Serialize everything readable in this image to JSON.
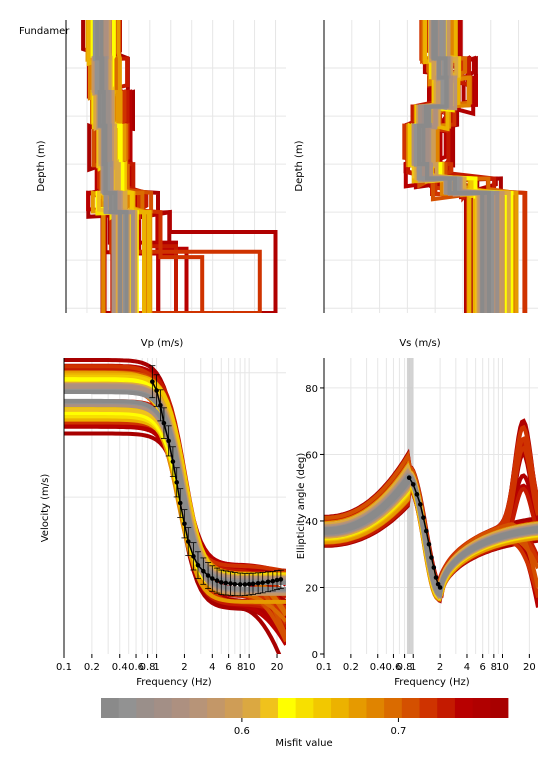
{
  "colors": {
    "scale": [
      "#8a8a8a",
      "#929292",
      "#9a8f8a",
      "#a38f86",
      "#ad9080",
      "#b79478",
      "#c39768",
      "#cf9d56",
      "#dba841",
      "#f0c21c",
      "#ffff00",
      "#f7e000",
      "#f2c800",
      "#ecb200",
      "#e69a00",
      "#e08400",
      "#da6b00",
      "#d45000",
      "#cf3300",
      "#c41a00",
      "#b80000",
      "#b00000",
      "#a80000"
    ],
    "data": "#000000",
    "grid": "#e6e6e6",
    "band": "#c8c8c8"
  },
  "chart_data": [
    {
      "type": "line",
      "name": "vp-profiles",
      "xlabel": "Vp (m/s)",
      "ylabel": "Depth (m)",
      "xlim": [
        0,
        2100
      ],
      "ylim": [
        0,
        61
      ],
      "y_inverted": true,
      "xticks": [
        "0",
        "400",
        "800",
        "1200",
        "1600",
        "2000"
      ],
      "yticks": [
        "0",
        "20",
        "40",
        "60"
      ],
      "extra_label": "Fundamer",
      "best_model": {
        "depth": [
          0,
          8,
          15,
          22,
          30,
          36,
          40,
          61
        ],
        "vp": [
          300,
          320,
          340,
          360,
          380,
          420,
          520,
          540
        ]
      }
    },
    {
      "type": "line",
      "name": "vs-profiles",
      "xlabel": "Vs (m/s)",
      "ylabel": "Depth (m)",
      "xlim": [
        0,
        385
      ],
      "ylim": [
        0,
        61
      ],
      "y_inverted": true,
      "xticks": [
        "0",
        "100",
        "200",
        "300"
      ],
      "yticks": [
        "0",
        "20",
        "40",
        "60"
      ],
      "best_model": {
        "depth": [
          0,
          8,
          12,
          18,
          22,
          30,
          33,
          36,
          61
        ],
        "vs": [
          200,
          210,
          215,
          180,
          170,
          175,
          230,
          290,
          300
        ]
      }
    },
    {
      "type": "line",
      "name": "dispersion-curves",
      "xlabel": "Frequency (Hz)",
      "ylabel": "Velocity (m/s)",
      "xscale": "log",
      "xlim": [
        0.1,
        25
      ],
      "xticks": [
        "0.1",
        "0.2",
        "0.4",
        "0.6",
        "0.8",
        "1",
        "2",
        "4",
        "6",
        "8",
        "10",
        "20"
      ],
      "observed": {
        "x": [
          0.9,
          1.0,
          1.1,
          1.2,
          1.35,
          1.5,
          1.65,
          1.8,
          2.0,
          2.2,
          2.5,
          2.8,
          3.2,
          3.6,
          4.0,
          4.5,
          5.0,
          5.6,
          6.3,
          7.0,
          8.0,
          9.0,
          10.0,
          11.0,
          12.5,
          14.0,
          16.0,
          18.0,
          20.0,
          22.0
        ],
        "y": [
          0.08,
          0.11,
          0.16,
          0.22,
          0.28,
          0.35,
          0.42,
          0.49,
          0.56,
          0.62,
          0.67,
          0.7,
          0.72,
          0.735,
          0.745,
          0.752,
          0.758,
          0.76,
          0.762,
          0.764,
          0.765,
          0.765,
          0.764,
          0.763,
          0.761,
          0.759,
          0.756,
          0.754,
          0.75,
          0.748
        ]
      }
    },
    {
      "type": "line",
      "name": "ellipticity-curves",
      "xlabel": "Frequency (Hz)",
      "ylabel": "Ellipticity angle (deg)",
      "xscale": "log",
      "xlim": [
        0.1,
        25
      ],
      "ylim": [
        0,
        89
      ],
      "xticks": [
        "0.1",
        "0.2",
        "0.4",
        "0.6",
        "0.8",
        "1",
        "2",
        "4",
        "6",
        "8",
        "10",
        "20"
      ],
      "yticks": [
        "0",
        "20",
        "40",
        "60",
        "80"
      ],
      "observed": {
        "x": [
          0.9,
          1.0,
          1.1,
          1.2,
          1.3,
          1.4,
          1.5,
          1.6,
          1.7,
          1.8,
          1.9,
          2.0
        ],
        "y": [
          53,
          51,
          48,
          45,
          41,
          37,
          33,
          29,
          26,
          23,
          21,
          20
        ]
      }
    }
  ],
  "colorbar": {
    "label": "Misfit value",
    "ticks": [
      {
        "value": 0.6,
        "label": "0.6"
      },
      {
        "value": 0.7,
        "label": "0.7"
      }
    ],
    "range": [
      0.51,
      0.77
    ]
  }
}
